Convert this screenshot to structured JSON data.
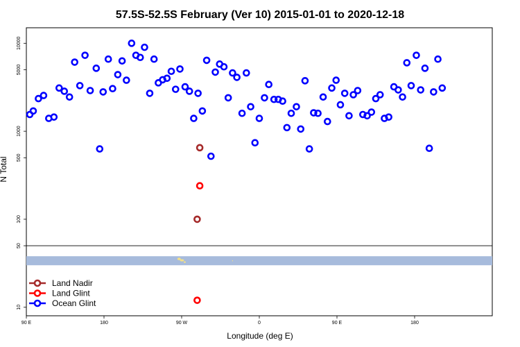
{
  "chart_data": {
    "type": "scatter",
    "title": "57.5S-52.5S February (Ver 10)   2015-01-01 to 2020-12-18",
    "xlabel": "Longitude (deg E)",
    "ylabel": "N Total",
    "x_scale": "longitude",
    "y_scale": "log",
    "xlim": [
      -90,
      180
    ],
    "ylim": [
      8,
      15000
    ],
    "x_ticks": [
      {
        "value": -90,
        "label": "90 E"
      },
      {
        "value": -45,
        "label": "180"
      },
      {
        "value": 0,
        "label": "90 W"
      },
      {
        "value": 45,
        "label": "0"
      },
      {
        "value": 90,
        "label": "90 E"
      },
      {
        "value": 135,
        "label": "180"
      }
    ],
    "y_ticks": [
      {
        "value": 10,
        "label": "10"
      },
      {
        "value": 50,
        "label": "50"
      },
      {
        "value": 100,
        "label": "100"
      },
      {
        "value": 500,
        "label": "500"
      },
      {
        "value": 1000,
        "label": "1000"
      },
      {
        "value": 5000,
        "label": "5000"
      },
      {
        "value": 10000,
        "label": "10000"
      }
    ],
    "separator_y": 50,
    "map_strip": {
      "y_top": 38,
      "y_bottom": 30,
      "ocean_color": "#a7bbdc",
      "land_color": "#f2e08a"
    },
    "legend_position": "bottom-left",
    "series": [
      {
        "name": "Land Nadir",
        "color": "#a52a2a",
        "points": [
          [
            10.5,
            650
          ],
          [
            9,
            100
          ]
        ]
      },
      {
        "name": "Land Glint",
        "color": "#ff0000",
        "points": [
          [
            10.5,
            240
          ],
          [
            9,
            12
          ]
        ]
      },
      {
        "name": "Ocean Glint",
        "color": "#0000ff",
        "points": [
          [
            -88,
            1550
          ],
          [
            -86,
            1700
          ],
          [
            -83,
            2350
          ],
          [
            -80,
            2550
          ],
          [
            -77,
            1400
          ],
          [
            -74,
            1450
          ],
          [
            -71,
            3100
          ],
          [
            -68,
            2850
          ],
          [
            -65,
            2450
          ],
          [
            -62,
            6100
          ],
          [
            -59,
            3300
          ],
          [
            -56,
            7300
          ],
          [
            -53,
            2900
          ],
          [
            -49.5,
            5200
          ],
          [
            -47.5,
            630
          ],
          [
            -45.5,
            2800
          ],
          [
            -42.5,
            6600
          ],
          [
            -40,
            3050
          ],
          [
            -37,
            4400
          ],
          [
            -34.5,
            6300
          ],
          [
            -32,
            3800
          ],
          [
            -29,
            10000
          ],
          [
            -26.5,
            7300
          ],
          [
            -24,
            6900
          ],
          [
            -21.5,
            9000
          ],
          [
            -18.5,
            2700
          ],
          [
            -16,
            6600
          ],
          [
            -13.5,
            3550
          ],
          [
            -11,
            3850
          ],
          [
            -8.5,
            4000
          ],
          [
            -6,
            4800
          ],
          [
            -3.5,
            3000
          ],
          [
            -1,
            5100
          ],
          [
            2,
            3200
          ],
          [
            4.5,
            2850
          ],
          [
            7,
            1400
          ],
          [
            9.5,
            2700
          ],
          [
            12,
            1700
          ],
          [
            14.5,
            6400
          ],
          [
            17,
            520
          ],
          [
            19.5,
            4700
          ],
          [
            22,
            5800
          ],
          [
            24.5,
            5400
          ],
          [
            27,
            2400
          ],
          [
            29.5,
            4600
          ],
          [
            32,
            4100
          ],
          [
            35,
            1600
          ],
          [
            37.5,
            4600
          ],
          [
            40,
            1900
          ],
          [
            42.5,
            740
          ],
          [
            45,
            1400
          ],
          [
            48,
            2400
          ],
          [
            50.5,
            3400
          ],
          [
            53.5,
            2300
          ],
          [
            56,
            2300
          ],
          [
            58.5,
            2200
          ],
          [
            61,
            1100
          ],
          [
            63.5,
            1600
          ],
          [
            66.5,
            1900
          ],
          [
            69,
            1060
          ],
          [
            71.5,
            3750
          ],
          [
            74,
            630
          ],
          [
            76.5,
            1620
          ],
          [
            79,
            1600
          ],
          [
            82,
            2450
          ],
          [
            84.5,
            1290
          ],
          [
            87,
            3100
          ],
          [
            89.5,
            3800
          ],
          [
            92,
            2000
          ],
          [
            94.5,
            2700
          ],
          [
            97,
            1500
          ],
          [
            99.5,
            2600
          ],
          [
            102,
            2900
          ],
          [
            105,
            1550
          ],
          [
            107.5,
            1500
          ],
          [
            110,
            1650
          ],
          [
            112.5,
            2350
          ],
          [
            115,
            2600
          ],
          [
            117.5,
            1400
          ],
          [
            120,
            1450
          ],
          [
            123,
            3200
          ],
          [
            125.5,
            2950
          ],
          [
            128,
            2450
          ],
          [
            130.5,
            6000
          ],
          [
            133,
            3300
          ],
          [
            136,
            7300
          ],
          [
            138.5,
            2950
          ],
          [
            141,
            5200
          ],
          [
            143.5,
            640
          ],
          [
            146,
            2800
          ],
          [
            148.5,
            6600
          ],
          [
            151,
            3100
          ]
        ]
      }
    ]
  }
}
